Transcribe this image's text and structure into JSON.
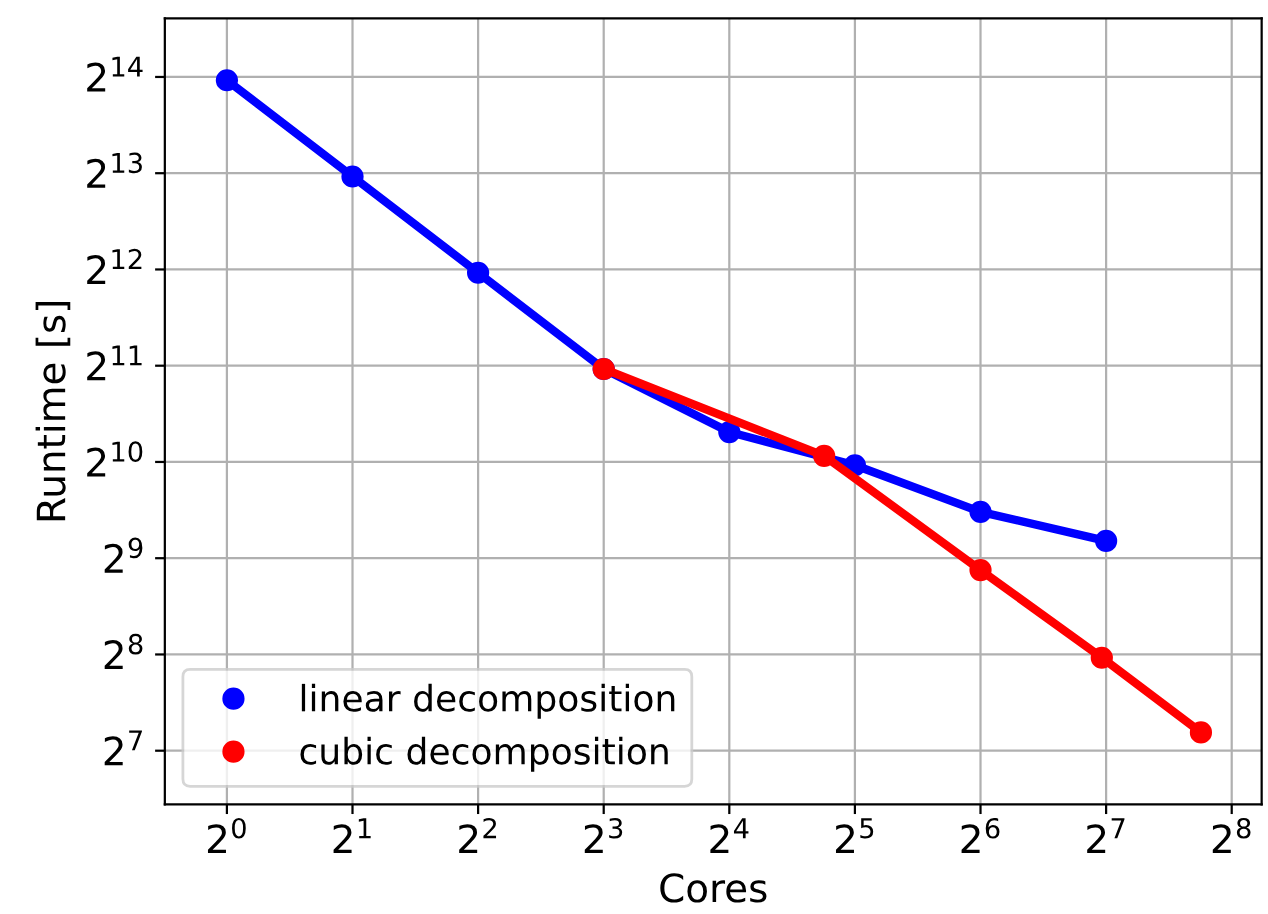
{
  "chart_data": {
    "type": "line",
    "xlabel": "Cores",
    "ylabel": "Runtime [s]",
    "log": "xy",
    "grid": true,
    "legend": "bottom left",
    "marker": "circle",
    "line_style": "solid",
    "xlim": [
      0.71,
      302
    ],
    "ylim": [
      87,
      25000
    ],
    "xticks": [
      {
        "value": 1,
        "label": "2$^{0}$"
      },
      {
        "value": 2,
        "label": "2$^{1}$"
      },
      {
        "value": 4,
        "label": "2$^{2}$"
      },
      {
        "value": 8,
        "label": "2$^{3}$"
      },
      {
        "value": 16,
        "label": "2$^{4}$"
      },
      {
        "value": 32,
        "label": "2$^{5}$"
      },
      {
        "value": 64,
        "label": "2$^{6}$"
      },
      {
        "value": 128,
        "label": "2$^{7}$"
      },
      {
        "value": 256,
        "label": "2$^{8}$"
      }
    ],
    "yticks": [
      {
        "value": 128,
        "label": "2$^{7}$"
      },
      {
        "value": 256,
        "label": "2$^{8}$"
      },
      {
        "value": 512,
        "label": "2$^{9}$"
      },
      {
        "value": 1024,
        "label": "2$^{10}$"
      },
      {
        "value": 2048,
        "label": "2$^{11}$"
      },
      {
        "value": 4096,
        "label": "2$^{12}$"
      },
      {
        "value": 8192,
        "label": "2$^{13}$"
      },
      {
        "value": 16384,
        "label": "2$^{14}$"
      }
    ],
    "series": [
      {
        "name": "linear decomposition",
        "color": "#0000ff",
        "x": [
          1,
          2,
          4,
          8,
          16,
          32,
          64,
          128
        ],
        "values": [
          16000,
          8000,
          4000,
          2000,
          1270,
          1000,
          715,
          580
        ]
      },
      {
        "name": "cubic decomposition",
        "color": "#ff0000",
        "x": [
          8,
          27,
          64,
          125,
          216
        ],
        "values": [
          2000,
          1070,
          470,
          250,
          146
        ]
      }
    ]
  }
}
